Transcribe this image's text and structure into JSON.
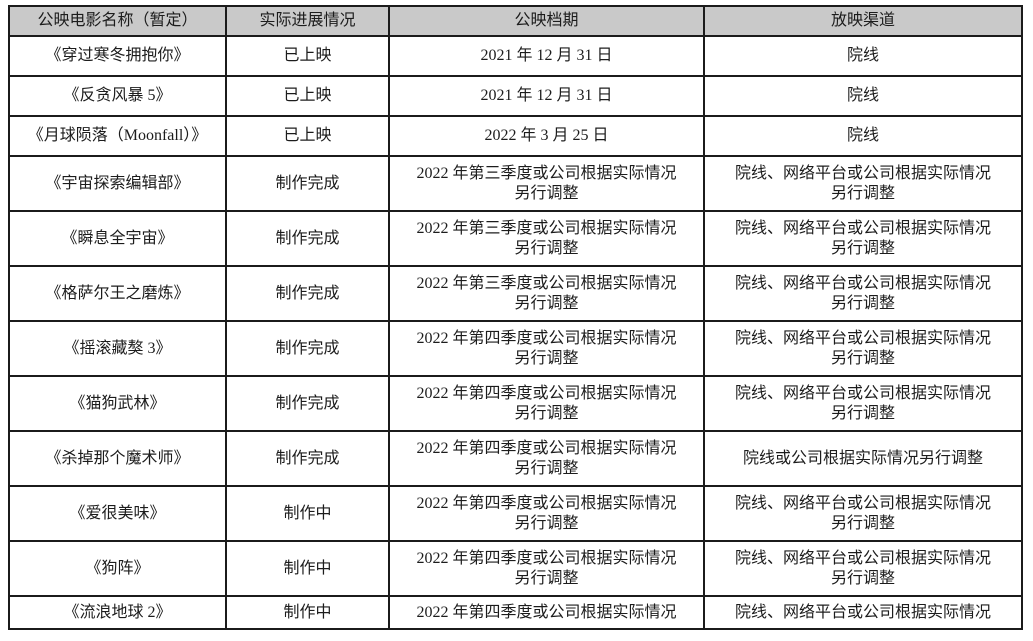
{
  "colors": {
    "header_bg": "#c9c9c9",
    "border": "#1b1b1b",
    "text": "#1c1c1c",
    "page_bg": "#ffffff"
  },
  "table": {
    "headers": [
      "公映电影名称（暂定）",
      "实际进展情况",
      "公映档期",
      "放映渠道"
    ],
    "rows": [
      {
        "name": "《穿过寒冬拥抱你》",
        "status": "已上映",
        "schedule": "2021 年 12 月 31 日",
        "channel": "院线"
      },
      {
        "name": "《反贪风暴 5》",
        "status": "已上映",
        "schedule": "2021 年 12 月 31 日",
        "channel": "院线"
      },
      {
        "name": "《月球陨落（Moonfall）》",
        "status": "已上映",
        "schedule": "2022 年 3 月 25 日",
        "channel": "院线"
      },
      {
        "name": "《宇宙探索编辑部》",
        "status": "制作完成",
        "schedule": "2022 年第三季度或公司根据实际情况\n另行调整",
        "channel": "院线、网络平台或公司根据实际情况\n另行调整"
      },
      {
        "name": "《瞬息全宇宙》",
        "status": "制作完成",
        "schedule": "2022 年第三季度或公司根据实际情况\n另行调整",
        "channel": "院线、网络平台或公司根据实际情况\n另行调整"
      },
      {
        "name": "《格萨尔王之磨炼》",
        "status": "制作完成",
        "schedule": "2022 年第三季度或公司根据实际情况\n另行调整",
        "channel": "院线、网络平台或公司根据实际情况\n另行调整"
      },
      {
        "name": "《摇滚藏獒 3》",
        "status": "制作完成",
        "schedule": "2022 年第四季度或公司根据实际情况\n另行调整",
        "channel": "院线、网络平台或公司根据实际情况\n另行调整"
      },
      {
        "name": "《猫狗武林》",
        "status": "制作完成",
        "schedule": "2022 年第四季度或公司根据实际情况\n另行调整",
        "channel": "院线、网络平台或公司根据实际情况\n另行调整"
      },
      {
        "name": "《杀掉那个魔术师》",
        "status": "制作完成",
        "schedule": "2022 年第四季度或公司根据实际情况\n另行调整",
        "channel": "院线或公司根据实际情况另行调整"
      },
      {
        "name": "《爱很美味》",
        "status": "制作中",
        "schedule": "2022 年第四季度或公司根据实际情况\n另行调整",
        "channel": "院线、网络平台或公司根据实际情况\n另行调整"
      },
      {
        "name": "《狗阵》",
        "status": "制作中",
        "schedule": "2022 年第四季度或公司根据实际情况\n另行调整",
        "channel": "院线、网络平台或公司根据实际情况\n另行调整"
      },
      {
        "name": "《流浪地球 2》",
        "status": "制作中",
        "schedule": "2022 年第四季度或公司根据实际情况",
        "channel": "院线、网络平台或公司根据实际情况"
      }
    ]
  }
}
